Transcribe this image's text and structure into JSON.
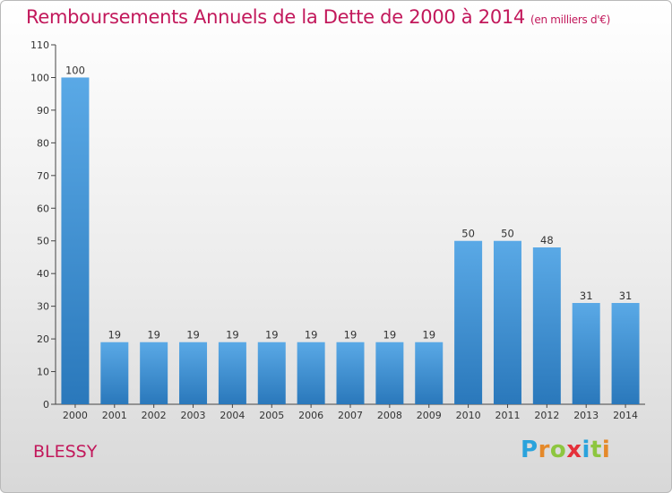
{
  "header": {
    "title": "Remboursements Annuels de la Dette de 2000 à 2014",
    "unit": "(en milliers d'€)"
  },
  "footer": {
    "place": "BLESSY",
    "brand_letters": [
      "P",
      "r",
      "o",
      "x",
      "i",
      "t",
      "i"
    ],
    "brand_colors": [
      "#2aa3dc",
      "#e5892a",
      "#8dc63f",
      "#e5303a",
      "#2aa3dc",
      "#8dc63f",
      "#e5892a"
    ]
  },
  "colors": {
    "title": "#c2185b",
    "bar_top": "#5aa9e6",
    "bar_bottom": "#2a78bb"
  },
  "chart_data": {
    "type": "bar",
    "title": "Remboursements Annuels de la Dette de 2000 à 2014",
    "xlabel": "",
    "ylabel": "",
    "categories": [
      "2000",
      "2001",
      "2002",
      "2003",
      "2004",
      "2005",
      "2006",
      "2007",
      "2008",
      "2009",
      "2010",
      "2011",
      "2012",
      "2013",
      "2014"
    ],
    "values": [
      100,
      19,
      19,
      19,
      19,
      19,
      19,
      19,
      19,
      19,
      50,
      50,
      48,
      31,
      31
    ],
    "ylim": [
      0,
      110
    ],
    "yticks": [
      0,
      10,
      20,
      30,
      40,
      50,
      60,
      70,
      80,
      90,
      100,
      110
    ],
    "grid": false,
    "legend": "none"
  }
}
